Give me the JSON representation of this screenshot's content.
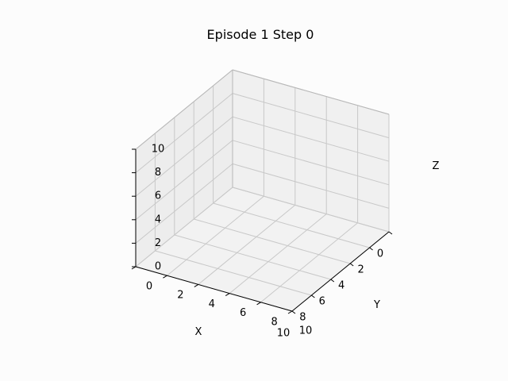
{
  "chart_data": {
    "type": "scatter",
    "projection": "3d",
    "title": "Episode 1 Step 0",
    "xlabel": "X",
    "ylabel": "Y",
    "zlabel": "Z",
    "xlim": [
      0,
      10
    ],
    "ylim": [
      0,
      10
    ],
    "zlim": [
      0,
      10
    ],
    "x_ticks": [
      "0",
      "2",
      "4",
      "6",
      "8",
      "10"
    ],
    "y_ticks": [
      "0",
      "2",
      "4",
      "6",
      "8",
      "10"
    ],
    "z_ticks": [
      "0",
      "2",
      "4",
      "6",
      "8",
      "10"
    ],
    "grid": true,
    "series": []
  }
}
